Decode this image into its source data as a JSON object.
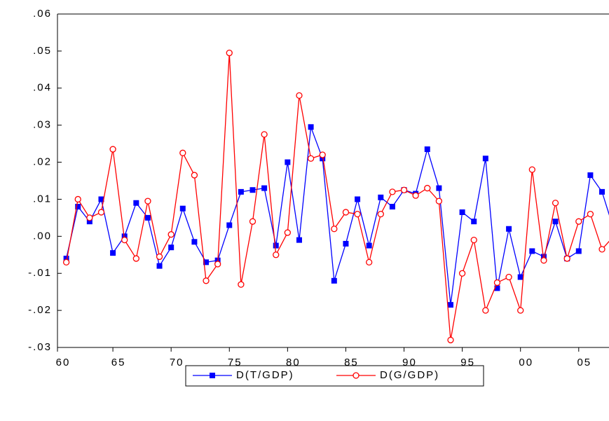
{
  "chart_data": {
    "type": "line",
    "x": [
      1961,
      1962,
      1963,
      1964,
      1965,
      1966,
      1967,
      1968,
      1969,
      1970,
      1971,
      1972,
      1973,
      1974,
      1975,
      1976,
      1977,
      1978,
      1979,
      1980,
      1981,
      1982,
      1983,
      1984,
      1985,
      1986,
      1987,
      1988,
      1989,
      1990,
      1991,
      1992,
      1993,
      1994,
      1995,
      1996,
      1997,
      1998,
      1999,
      2000,
      2001,
      2002,
      2003,
      2004,
      2005,
      2006,
      2007,
      2008
    ],
    "series": [
      {
        "name": "D(T/GDP)",
        "color": "#0000ff",
        "marker": "square",
        "values": [
          -0.006,
          0.008,
          0.004,
          0.01,
          -0.0045,
          0.0,
          0.009,
          0.005,
          -0.008,
          -0.003,
          0.0075,
          -0.0015,
          -0.007,
          -0.0065,
          0.003,
          0.012,
          0.0125,
          0.013,
          -0.0025,
          0.02,
          -0.001,
          0.0295,
          0.021,
          -0.012,
          -0.002,
          0.01,
          -0.0025,
          0.0105,
          0.008,
          0.0125,
          0.0115,
          0.0235,
          0.013,
          -0.0185,
          0.0065,
          0.004,
          0.021,
          -0.014,
          0.002,
          -0.011,
          -0.004,
          -0.0055,
          0.004,
          -0.006,
          -0.004,
          0.0165,
          0.012,
          0.002
        ]
      },
      {
        "name": "D(G/GDP)",
        "color": "#ff0000",
        "marker": "circle",
        "values": [
          -0.007,
          0.01,
          0.005,
          0.0065,
          0.0235,
          -0.001,
          -0.006,
          0.0095,
          -0.0055,
          0.0005,
          0.0225,
          0.0165,
          -0.012,
          -0.0075,
          0.0495,
          -0.013,
          0.004,
          0.0275,
          -0.005,
          0.001,
          0.038,
          0.021,
          0.022,
          0.002,
          0.0065,
          0.006,
          -0.007,
          0.006,
          0.012,
          0.0125,
          0.011,
          0.013,
          0.0095,
          -0.028,
          -0.01,
          -0.001,
          -0.02,
          -0.0125,
          -0.011,
          -0.02,
          0.018,
          -0.0065,
          0.009,
          -0.006,
          0.004,
          0.006,
          -0.0035,
          0.0
        ]
      }
    ],
    "xlim": [
      1960,
      2007.6
    ],
    "xticks": [
      {
        "value": 1960,
        "label": "60"
      },
      {
        "value": 1965,
        "label": "65"
      },
      {
        "value": 1970,
        "label": "70"
      },
      {
        "value": 1975,
        "label": "75"
      },
      {
        "value": 1980,
        "label": "80"
      },
      {
        "value": 1985,
        "label": "85"
      },
      {
        "value": 1990,
        "label": "90"
      },
      {
        "value": 1995,
        "label": "95"
      },
      {
        "value": 2000,
        "label": "00"
      },
      {
        "value": 2005,
        "label": "05"
      }
    ],
    "ylim": [
      -0.03,
      0.06
    ],
    "yticks": [
      {
        "value": -0.03,
        "label": "-.03"
      },
      {
        "value": -0.02,
        "label": "-.02"
      },
      {
        "value": -0.01,
        "label": "-.01"
      },
      {
        "value": 0,
        "label": ".00"
      },
      {
        "value": 0.01,
        "label": ".01"
      },
      {
        "value": 0.02,
        "label": ".02"
      },
      {
        "value": 0.03,
        "label": ".03"
      },
      {
        "value": 0.04,
        "label": ".04"
      },
      {
        "value": 0.05,
        "label": ".05"
      },
      {
        "value": 0.06,
        "label": ".06"
      }
    ],
    "legend": "bottom"
  }
}
